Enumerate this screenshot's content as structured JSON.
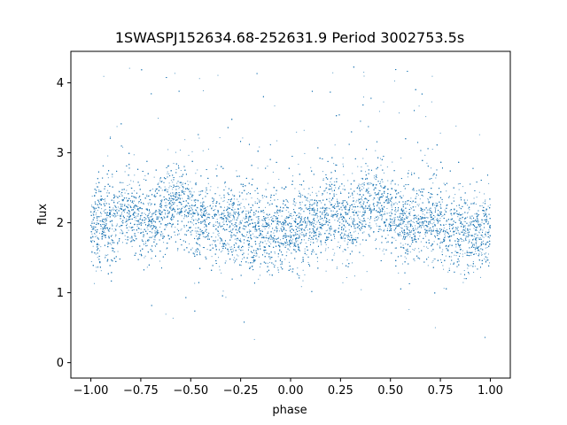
{
  "chart_data": {
    "type": "scatter",
    "title": "1SWASPJ152634.68-252631.9 Period 3002753.5s",
    "xlabel": "phase",
    "ylabel": "flux",
    "xlim": [
      -1.1,
      1.1
    ],
    "ylim": [
      -0.22,
      4.45
    ],
    "x_ticks": [
      -1.0,
      -0.75,
      -0.5,
      -0.25,
      0.0,
      0.25,
      0.5,
      0.75,
      1.0
    ],
    "x_tick_labels": [
      "−1.00",
      "−0.75",
      "−0.50",
      "−0.25",
      "0.00",
      "0.25",
      "0.50",
      "0.75",
      "1.00"
    ],
    "y_ticks": [
      0,
      1,
      2,
      3,
      4
    ],
    "y_tick_labels": [
      "0",
      "1",
      "2",
      "3",
      "4"
    ],
    "grid": false,
    "marker_color": "#1f77b4",
    "series": [
      {
        "phase_profile": [
          [
            -1.0,
            1.95
          ],
          [
            -0.9,
            2.0
          ],
          [
            -0.8,
            2.15
          ],
          [
            -0.75,
            2.1
          ],
          [
            -0.7,
            2.0
          ],
          [
            -0.65,
            2.2
          ],
          [
            -0.55,
            2.3
          ],
          [
            -0.45,
            2.0
          ],
          [
            -0.35,
            2.0
          ],
          [
            -0.25,
            1.95
          ],
          [
            -0.15,
            1.85
          ],
          [
            -0.05,
            1.85
          ],
          [
            0.0,
            1.9
          ],
          [
            0.1,
            1.95
          ],
          [
            0.2,
            2.15
          ],
          [
            0.25,
            2.1
          ],
          [
            0.3,
            2.0
          ],
          [
            0.35,
            2.2
          ],
          [
            0.45,
            2.3
          ],
          [
            0.55,
            2.0
          ],
          [
            0.65,
            2.0
          ],
          [
            0.75,
            1.95
          ],
          [
            0.85,
            1.85
          ],
          [
            0.95,
            1.85
          ],
          [
            1.0,
            1.9
          ]
        ],
        "spread": 0.28,
        "n_points": 14000
      }
    ]
  }
}
